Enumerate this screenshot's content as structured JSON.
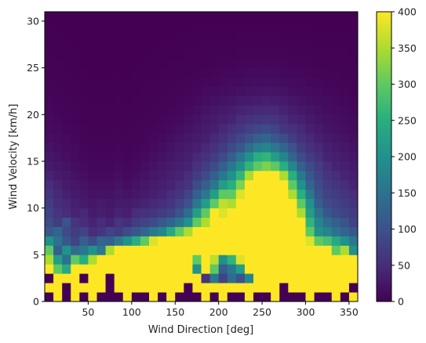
{
  "chart_data": {
    "type": "heatmap",
    "title": "",
    "xlabel": "Wind Direction [deg]",
    "ylabel": "Wind Velocity [km/h]",
    "xlim": [
      0,
      360
    ],
    "ylim": [
      0,
      31
    ],
    "x_ticks": [
      50,
      100,
      150,
      200,
      250,
      300,
      350
    ],
    "y_ticks": [
      0,
      5,
      10,
      15,
      20,
      25,
      30
    ],
    "bin_width_x_deg": 10,
    "bin_width_y_kmh": 1,
    "colormap": "viridis",
    "color_range": [
      0,
      400
    ],
    "colorbar_ticks": [
      0,
      50,
      100,
      150,
      200,
      250,
      300,
      350,
      400
    ],
    "grid": false,
    "x_bin_centers": [
      5,
      15,
      25,
      35,
      45,
      55,
      65,
      75,
      85,
      95,
      105,
      115,
      125,
      135,
      145,
      155,
      165,
      175,
      185,
      195,
      205,
      215,
      225,
      235,
      245,
      255,
      265,
      275,
      285,
      295,
      305,
      315,
      325,
      335,
      345,
      355
    ],
    "velocity_band_note": "rows are velocity bins 0-1, 1-2, ... 30-31 km/h",
    "counts_rows_by_velocity": [
      [
        0,
        400,
        0,
        400,
        0,
        400,
        0,
        0,
        0,
        400,
        0,
        0,
        400,
        0,
        400,
        0,
        0,
        0,
        400,
        0,
        400,
        0,
        0,
        400,
        0,
        0,
        400,
        0,
        0,
        0,
        400,
        0,
        0,
        400,
        0,
        400
      ],
      [
        400,
        400,
        0,
        400,
        400,
        400,
        400,
        0,
        400,
        400,
        400,
        400,
        400,
        400,
        400,
        400,
        0,
        400,
        400,
        400,
        400,
        400,
        400,
        400,
        400,
        400,
        400,
        0,
        400,
        400,
        400,
        400,
        400,
        400,
        400,
        0
      ],
      [
        0,
        400,
        400,
        400,
        0,
        400,
        400,
        0,
        400,
        400,
        400,
        400,
        400,
        400,
        400,
        400,
        400,
        400,
        60,
        160,
        80,
        140,
        100,
        180,
        400,
        400,
        400,
        400,
        400,
        400,
        400,
        400,
        400,
        400,
        400,
        400
      ],
      [
        400,
        300,
        240,
        400,
        400,
        400,
        400,
        400,
        400,
        400,
        400,
        400,
        400,
        400,
        400,
        400,
        400,
        200,
        400,
        300,
        120,
        160,
        220,
        400,
        400,
        400,
        400,
        400,
        400,
        400,
        400,
        400,
        400,
        400,
        400,
        400
      ],
      [
        350,
        220,
        150,
        300,
        250,
        350,
        400,
        400,
        400,
        400,
        400,
        400,
        400,
        400,
        400,
        400,
        400,
        300,
        400,
        360,
        200,
        260,
        380,
        400,
        400,
        400,
        400,
        400,
        400,
        400,
        400,
        400,
        400,
        400,
        400,
        400
      ],
      [
        300,
        120,
        200,
        140,
        160,
        200,
        160,
        350,
        400,
        400,
        400,
        400,
        400,
        400,
        400,
        400,
        400,
        400,
        400,
        400,
        400,
        400,
        400,
        400,
        400,
        400,
        400,
        400,
        400,
        400,
        400,
        400,
        400,
        300,
        350,
        200
      ],
      [
        200,
        150,
        110,
        80,
        120,
        90,
        130,
        120,
        160,
        200,
        250,
        300,
        380,
        400,
        400,
        400,
        400,
        400,
        400,
        400,
        400,
        400,
        400,
        400,
        400,
        400,
        400,
        400,
        400,
        400,
        380,
        300,
        280,
        240,
        200,
        160
      ],
      [
        110,
        130,
        90,
        70,
        80,
        50,
        60,
        80,
        70,
        90,
        110,
        130,
        160,
        180,
        240,
        300,
        350,
        400,
        400,
        400,
        400,
        400,
        400,
        400,
        400,
        400,
        400,
        400,
        400,
        400,
        300,
        200,
        180,
        150,
        130,
        110
      ],
      [
        90,
        70,
        100,
        60,
        50,
        40,
        50,
        40,
        60,
        50,
        70,
        80,
        90,
        110,
        130,
        160,
        200,
        300,
        350,
        400,
        400,
        400,
        400,
        400,
        400,
        400,
        400,
        400,
        400,
        400,
        260,
        180,
        140,
        120,
        100,
        80
      ],
      [
        80,
        60,
        50,
        40,
        45,
        30,
        35,
        30,
        40,
        35,
        50,
        55,
        60,
        70,
        80,
        100,
        140,
        220,
        300,
        400,
        380,
        400,
        400,
        400,
        400,
        400,
        400,
        400,
        400,
        350,
        220,
        150,
        110,
        90,
        80,
        70
      ],
      [
        70,
        50,
        45,
        35,
        30,
        25,
        30,
        25,
        30,
        30,
        35,
        40,
        45,
        50,
        60,
        80,
        100,
        160,
        220,
        300,
        360,
        350,
        400,
        400,
        400,
        400,
        400,
        400,
        400,
        300,
        200,
        120,
        90,
        80,
        70,
        60
      ],
      [
        60,
        45,
        35,
        30,
        25,
        20,
        20,
        20,
        25,
        20,
        25,
        30,
        35,
        40,
        50,
        60,
        80,
        120,
        160,
        220,
        300,
        300,
        380,
        400,
        400,
        400,
        400,
        400,
        350,
        250,
        160,
        100,
        80,
        70,
        60,
        50
      ],
      [
        50,
        40,
        30,
        25,
        20,
        15,
        15,
        15,
        20,
        15,
        20,
        25,
        30,
        35,
        40,
        50,
        60,
        90,
        120,
        160,
        220,
        250,
        320,
        400,
        400,
        400,
        400,
        400,
        300,
        200,
        130,
        90,
        70,
        60,
        50,
        40
      ],
      [
        40,
        30,
        25,
        20,
        15,
        10,
        10,
        10,
        15,
        10,
        15,
        20,
        25,
        30,
        35,
        40,
        50,
        70,
        90,
        120,
        160,
        200,
        260,
        350,
        400,
        400,
        400,
        350,
        250,
        160,
        110,
        80,
        60,
        50,
        40,
        35
      ],
      [
        30,
        25,
        20,
        15,
        10,
        8,
        8,
        8,
        10,
        8,
        10,
        15,
        20,
        25,
        30,
        35,
        40,
        55,
        70,
        90,
        120,
        160,
        200,
        260,
        300,
        320,
        300,
        250,
        180,
        120,
        90,
        70,
        50,
        40,
        35,
        30
      ],
      [
        25,
        20,
        15,
        12,
        8,
        6,
        6,
        6,
        8,
        6,
        8,
        10,
        15,
        20,
        25,
        30,
        35,
        45,
        55,
        70,
        90,
        120,
        160,
        200,
        250,
        260,
        220,
        180,
        130,
        90,
        70,
        55,
        40,
        35,
        30,
        25
      ],
      [
        20,
        15,
        12,
        10,
        6,
        5,
        5,
        5,
        6,
        5,
        6,
        8,
        10,
        15,
        20,
        25,
        30,
        35,
        45,
        55,
        70,
        90,
        110,
        140,
        170,
        180,
        160,
        130,
        100,
        70,
        55,
        45,
        35,
        30,
        25,
        20
      ],
      [
        15,
        12,
        10,
        8,
        5,
        4,
        4,
        4,
        5,
        4,
        5,
        6,
        8,
        10,
        15,
        20,
        25,
        30,
        35,
        45,
        55,
        70,
        85,
        100,
        120,
        130,
        110,
        90,
        70,
        55,
        45,
        35,
        28,
        24,
        20,
        16
      ],
      [
        12,
        10,
        8,
        6,
        4,
        3,
        3,
        3,
        4,
        3,
        4,
        5,
        6,
        8,
        10,
        15,
        20,
        25,
        30,
        35,
        45,
        55,
        65,
        75,
        85,
        90,
        80,
        65,
        55,
        45,
        35,
        28,
        22,
        18,
        15,
        12
      ],
      [
        10,
        8,
        6,
        5,
        3,
        2,
        2,
        2,
        3,
        2,
        3,
        4,
        5,
        6,
        8,
        10,
        15,
        20,
        25,
        30,
        35,
        40,
        50,
        55,
        60,
        65,
        60,
        50,
        40,
        35,
        28,
        22,
        18,
        15,
        12,
        10
      ],
      [
        8,
        6,
        5,
        4,
        2,
        2,
        2,
        2,
        2,
        2,
        2,
        3,
        4,
        5,
        6,
        8,
        10,
        15,
        20,
        25,
        28,
        32,
        38,
        42,
        45,
        48,
        45,
        38,
        32,
        26,
        22,
        18,
        14,
        12,
        10,
        8
      ],
      [
        6,
        5,
        4,
        3,
        2,
        1,
        1,
        1,
        2,
        1,
        2,
        2,
        3,
        4,
        5,
        6,
        8,
        10,
        14,
        18,
        20,
        24,
        28,
        30,
        32,
        34,
        32,
        28,
        24,
        20,
        16,
        14,
        11,
        9,
        8,
        6
      ],
      [
        5,
        4,
        3,
        2,
        1,
        1,
        1,
        1,
        1,
        1,
        1,
        2,
        2,
        3,
        4,
        5,
        6,
        8,
        10,
        12,
        14,
        16,
        18,
        20,
        22,
        24,
        22,
        20,
        16,
        14,
        12,
        10,
        8,
        7,
        6,
        5
      ],
      [
        4,
        3,
        2,
        2,
        1,
        1,
        1,
        1,
        1,
        1,
        1,
        1,
        2,
        2,
        3,
        4,
        5,
        6,
        7,
        8,
        10,
        11,
        12,
        14,
        15,
        16,
        15,
        13,
        11,
        10,
        8,
        7,
        6,
        5,
        4,
        4
      ],
      [
        3,
        2,
        2,
        1,
        1,
        0,
        0,
        0,
        1,
        0,
        1,
        1,
        1,
        2,
        2,
        3,
        3,
        4,
        5,
        6,
        7,
        8,
        9,
        10,
        10,
        11,
        10,
        9,
        8,
        7,
        6,
        5,
        4,
        4,
        3,
        3
      ],
      [
        2,
        2,
        1,
        1,
        0,
        0,
        0,
        0,
        0,
        0,
        0,
        1,
        1,
        1,
        2,
        2,
        2,
        3,
        3,
        4,
        5,
        5,
        6,
        6,
        7,
        7,
        7,
        6,
        5,
        5,
        4,
        3,
        3,
        3,
        2,
        2
      ],
      [
        2,
        1,
        1,
        1,
        0,
        0,
        0,
        0,
        0,
        0,
        0,
        0,
        1,
        1,
        1,
        1,
        2,
        2,
        2,
        3,
        3,
        3,
        4,
        4,
        4,
        5,
        4,
        4,
        3,
        3,
        3,
        2,
        2,
        2,
        2,
        1
      ],
      [
        1,
        1,
        1,
        0,
        0,
        0,
        0,
        0,
        0,
        0,
        0,
        0,
        0,
        1,
        1,
        1,
        1,
        1,
        2,
        2,
        2,
        2,
        2,
        3,
        3,
        3,
        3,
        2,
        2,
        2,
        2,
        1,
        1,
        1,
        1,
        1
      ],
      [
        1,
        1,
        0,
        0,
        0,
        0,
        0,
        0,
        0,
        0,
        0,
        0,
        0,
        0,
        0,
        1,
        1,
        1,
        1,
        1,
        1,
        1,
        2,
        2,
        2,
        2,
        2,
        1,
        1,
        1,
        1,
        1,
        1,
        1,
        1,
        1
      ],
      [
        1,
        0,
        0,
        0,
        0,
        0,
        0,
        0,
        0,
        0,
        0,
        0,
        0,
        0,
        0,
        0,
        0,
        1,
        1,
        1,
        1,
        1,
        1,
        1,
        1,
        1,
        1,
        1,
        1,
        1,
        1,
        0,
        0,
        0,
        0,
        0
      ],
      [
        0,
        0,
        0,
        0,
        0,
        0,
        0,
        0,
        0,
        0,
        0,
        0,
        0,
        0,
        0,
        0,
        0,
        0,
        0,
        0,
        0,
        0,
        0,
        0,
        0,
        0,
        0,
        0,
        0,
        0,
        0,
        0,
        0,
        0,
        0,
        0
      ]
    ]
  }
}
